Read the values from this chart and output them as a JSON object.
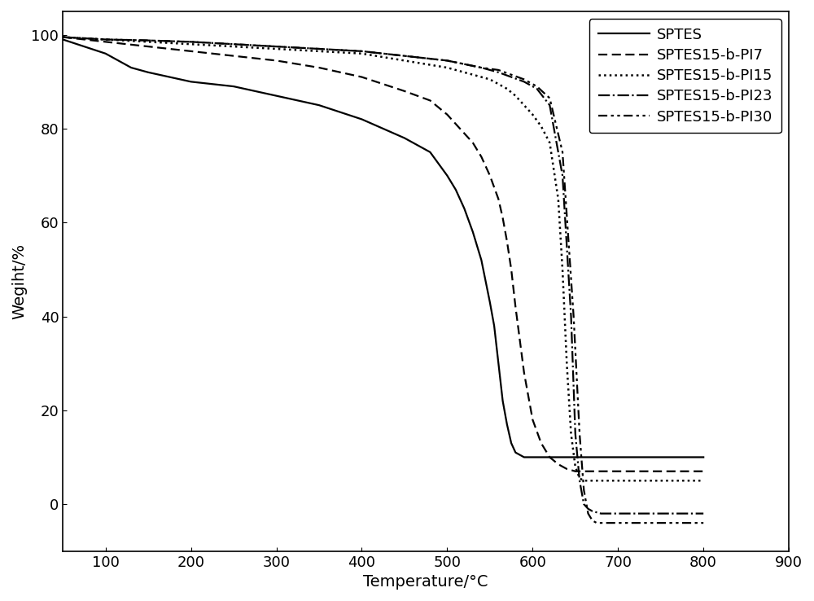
{
  "xlabel": "Temperature/°C",
  "ylabel": "Wegiht/%",
  "xlim": [
    50,
    900
  ],
  "ylim": [
    -10,
    105
  ],
  "xticks": [
    100,
    200,
    300,
    400,
    500,
    600,
    700,
    800,
    900
  ],
  "yticks": [
    0,
    20,
    40,
    60,
    80,
    100
  ],
  "legend_labels": [
    "SPTES",
    "SPTES15-b-PI7",
    "SPTES15-b-PI15",
    "SPTES15-b-PI23",
    "SPTES15-b-PI30"
  ],
  "line_colors": [
    "#000000",
    "#000000",
    "#000000",
    "#000000",
    "#000000"
  ],
  "line_widths": [
    1.6,
    1.6,
    1.4,
    1.6,
    1.6
  ],
  "series": {
    "SPTES": {
      "x": [
        50,
        100,
        130,
        150,
        200,
        250,
        300,
        350,
        400,
        450,
        480,
        500,
        510,
        520,
        530,
        540,
        550,
        555,
        560,
        565,
        570,
        575,
        580,
        585,
        590,
        600,
        650,
        700,
        800
      ],
      "y": [
        99,
        96,
        93,
        92,
        90,
        89,
        87,
        85,
        82,
        78,
        75,
        70,
        67,
        63,
        58,
        52,
        43,
        38,
        30,
        22,
        17,
        13,
        11,
        10.5,
        10,
        10,
        10,
        10,
        10
      ]
    },
    "SPTES15-b-PI7": {
      "x": [
        50,
        100,
        150,
        200,
        250,
        300,
        350,
        400,
        450,
        480,
        500,
        510,
        520,
        530,
        540,
        550,
        560,
        565,
        570,
        575,
        580,
        590,
        600,
        610,
        620,
        630,
        640,
        650,
        700,
        800
      ],
      "y": [
        99.5,
        98.5,
        97.5,
        96.5,
        95.5,
        94.5,
        93,
        91,
        88,
        86,
        83,
        81,
        79,
        77,
        74,
        70,
        65,
        61,
        56,
        50,
        42,
        28,
        18,
        13,
        10,
        8.5,
        7.5,
        7,
        7,
        7
      ]
    },
    "SPTES15-b-PI15": {
      "x": [
        50,
        100,
        150,
        200,
        250,
        300,
        350,
        400,
        450,
        500,
        530,
        550,
        560,
        570,
        580,
        590,
        600,
        610,
        620,
        630,
        635,
        640,
        645,
        650,
        655,
        660,
        665,
        670,
        700,
        800
      ],
      "y": [
        99.5,
        99,
        98.5,
        98,
        97.5,
        97,
        96.5,
        96,
        94.5,
        93,
        91.5,
        90.5,
        89.5,
        88.5,
        87,
        85,
        83,
        80.5,
        77,
        65,
        50,
        30,
        15,
        8,
        5.5,
        5,
        5,
        5,
        5,
        5
      ]
    },
    "SPTES15-b-PI23": {
      "x": [
        50,
        100,
        150,
        200,
        250,
        300,
        350,
        400,
        450,
        500,
        540,
        560,
        575,
        590,
        605,
        620,
        635,
        645,
        650,
        655,
        660,
        665,
        670,
        680,
        700,
        800
      ],
      "y": [
        99.5,
        99,
        98.8,
        98.5,
        98,
        97.5,
        97,
        96.5,
        95.5,
        94.5,
        93,
        92,
        91,
        90,
        88.5,
        85,
        70,
        40,
        15,
        5,
        0,
        -1,
        -1.5,
        -2,
        -2,
        -2
      ]
    },
    "SPTES15-b-PI30": {
      "x": [
        50,
        100,
        150,
        200,
        250,
        300,
        350,
        400,
        450,
        500,
        540,
        560,
        575,
        590,
        605,
        620,
        635,
        648,
        655,
        660,
        665,
        670,
        675,
        680,
        700,
        800
      ],
      "y": [
        99.5,
        99,
        98.8,
        98.5,
        98,
        97.5,
        97,
        96.5,
        95.5,
        94.5,
        93,
        92.5,
        91.5,
        90.5,
        89,
        86.5,
        75,
        40,
        15,
        3,
        -2,
        -3.5,
        -4,
        -4,
        -4,
        -4
      ]
    }
  },
  "background_color": "#ffffff",
  "fontsize": 14
}
